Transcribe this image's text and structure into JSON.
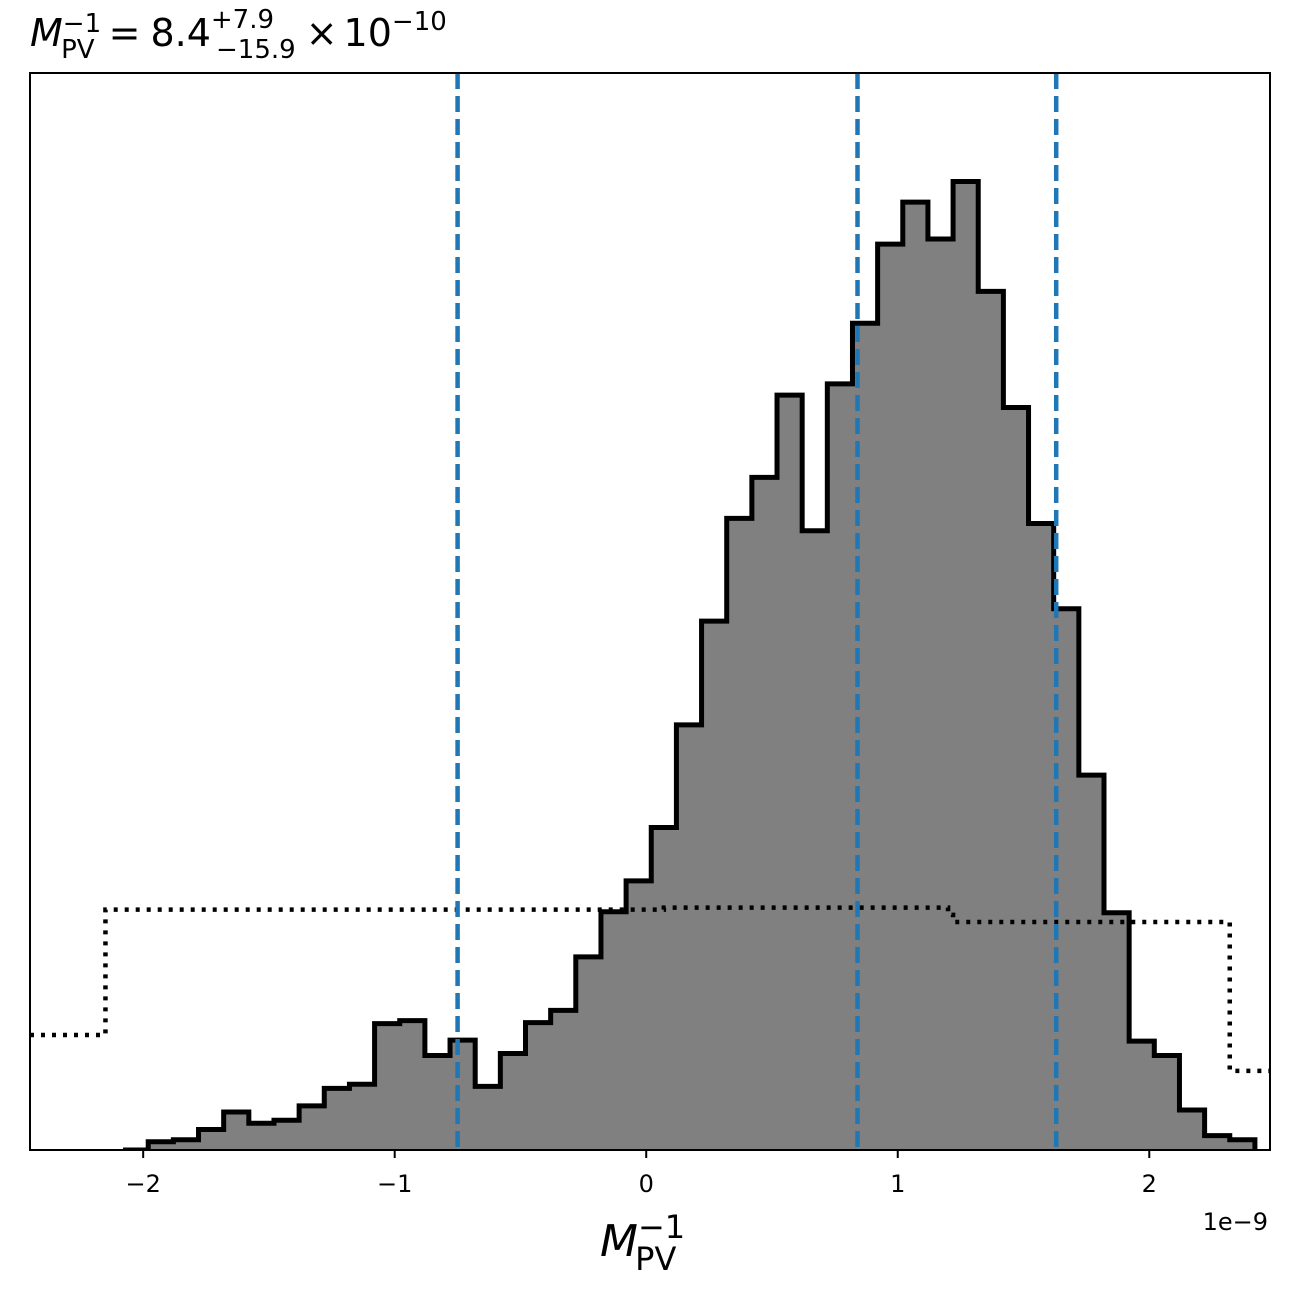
{
  "chart_data": {
    "type": "histogram",
    "title": {
      "symbol": "M",
      "symbol_sub": "PV",
      "symbol_sup": "−1",
      "equals": "=",
      "value": "8.4",
      "err_plus": "+7.9",
      "err_minus": "−15.9",
      "times": "×",
      "base": "10",
      "exponent": "−10"
    },
    "xlabel": {
      "symbol": "M",
      "sub": "PV",
      "sup": "−1"
    },
    "x_offset_label": "1e−9",
    "xlim": [
      -2.45,
      2.48
    ],
    "ylim": [
      0,
      1
    ],
    "xticks": [
      {
        "value": -2,
        "label": "−2"
      },
      {
        "value": -1,
        "label": "−1"
      },
      {
        "value": 0,
        "label": "0"
      },
      {
        "value": 1,
        "label": "1"
      },
      {
        "value": 2,
        "label": "2"
      }
    ],
    "histogram": {
      "color": "#808080",
      "edge_color": "#000000",
      "bin_width": 0.1,
      "bin_edges_start": -2.08,
      "heights": [
        0.0,
        0.008,
        0.01,
        0.02,
        0.037,
        0.026,
        0.029,
        0.043,
        0.06,
        0.064,
        0.123,
        0.126,
        0.092,
        0.107,
        0.062,
        0.094,
        0.124,
        0.136,
        0.188,
        0.232,
        0.262,
        0.314,
        0.414,
        0.515,
        0.615,
        0.655,
        0.735,
        0.603,
        0.746,
        0.805,
        0.882,
        0.923,
        0.887,
        0.943,
        0.836,
        0.723,
        0.61,
        0.527,
        0.365,
        0.231,
        0.106,
        0.092,
        0.039,
        0.014,
        0.01
      ]
    },
    "prior": {
      "style": "dotted",
      "color": "#000000",
      "steps": [
        {
          "x0": -2.45,
          "x1": -2.15,
          "y": 0.112
        },
        {
          "x0": -2.15,
          "x1": 0.07,
          "y": 0.234
        },
        {
          "x0": 0.07,
          "x1": 1.2,
          "y": 0.236
        },
        {
          "x0": 1.2,
          "x1": 1.22,
          "y": 0.229
        },
        {
          "x0": 1.22,
          "x1": 2.32,
          "y": 0.222
        },
        {
          "x0": 2.32,
          "x1": 2.48,
          "y": 0.077
        }
      ]
    },
    "quantile_lines": {
      "color": "#1f77b4",
      "style": "dashed",
      "x": [
        -0.75,
        0.84,
        1.63
      ]
    }
  }
}
